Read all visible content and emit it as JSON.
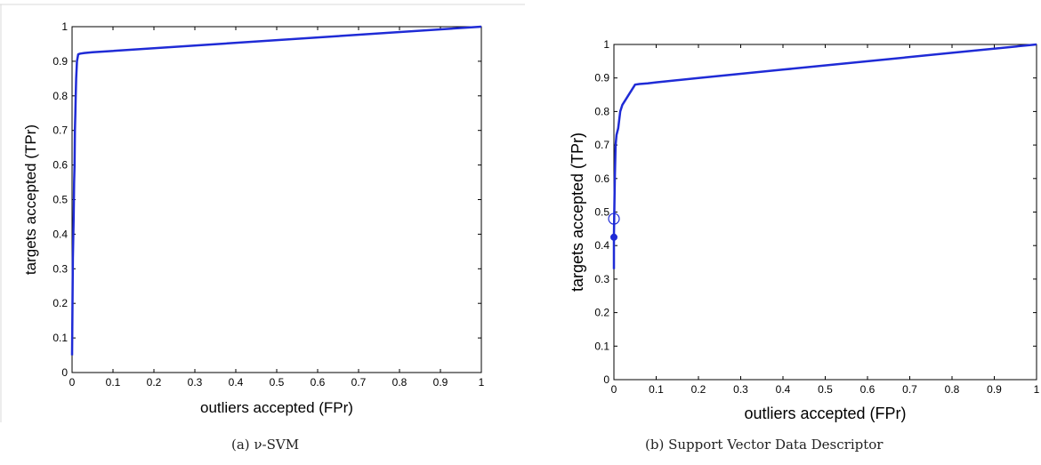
{
  "captions": {
    "a": "(a) ν-SVM",
    "b": "(b) Support Vector Data Descriptor"
  },
  "chart_data": [
    {
      "type": "line",
      "title": "",
      "xlabel": "outliers accepted (FPr)",
      "ylabel": "targets accepted (TPr)",
      "xlim": [
        0,
        1
      ],
      "ylim": [
        0,
        1
      ],
      "xticks": [
        "0",
        "0.1",
        "0.2",
        "0.3",
        "0.4",
        "0.5",
        "0.6",
        "0.7",
        "0.8",
        "0.9",
        "1"
      ],
      "yticks": [
        "0",
        "0.1",
        "0.2",
        "0.3",
        "0.4",
        "0.5",
        "0.6",
        "0.7",
        "0.8",
        "0.9",
        "1"
      ],
      "grid": false,
      "color": "#1f2bd6",
      "series": [
        {
          "x": [
            0,
            0.002,
            0.004,
            0.005,
            0.006,
            0.007,
            0.008,
            0.009,
            0.01,
            0.012,
            0.015,
            0.02,
            0.03,
            0.05,
            1.0
          ],
          "y": [
            0.05,
            0.33,
            0.45,
            0.55,
            0.6,
            0.7,
            0.75,
            0.8,
            0.85,
            0.9,
            0.92,
            0.922,
            0.924,
            0.926,
            1.0
          ]
        }
      ]
    },
    {
      "type": "line",
      "title": "",
      "xlabel": "outliers accepted (FPr)",
      "ylabel": "targets accepted (TPr)",
      "xlim": [
        0,
        1
      ],
      "ylim": [
        0,
        1
      ],
      "xticks": [
        "0",
        "0.1",
        "0.2",
        "0.3",
        "0.4",
        "0.5",
        "0.6",
        "0.7",
        "0.8",
        "0.9",
        "1"
      ],
      "yticks": [
        "0",
        "0.1",
        "0.2",
        "0.3",
        "0.4",
        "0.5",
        "0.6",
        "0.7",
        "0.8",
        "0.9",
        "1"
      ],
      "grid": false,
      "color": "#1f2bd6",
      "series": [
        {
          "x": [
            0,
            0,
            0.002,
            0.004,
            0.006,
            0.01,
            0.015,
            0.02,
            0.03,
            0.04,
            0.05,
            0.06,
            0.08,
            0.1,
            0.2,
            0.4,
            0.6,
            0.8,
            1.0
          ],
          "y": [
            0.33,
            0.43,
            0.6,
            0.7,
            0.73,
            0.75,
            0.8,
            0.82,
            0.84,
            0.86,
            0.88,
            0.882,
            0.884,
            0.887,
            0.9,
            0.925,
            0.95,
            0.975,
            1.0
          ]
        }
      ],
      "markers": [
        {
          "x": 0,
          "y": 0.425,
          "style": "filled"
        },
        {
          "x": 0,
          "y": 0.48,
          "style": "open"
        }
      ]
    }
  ]
}
